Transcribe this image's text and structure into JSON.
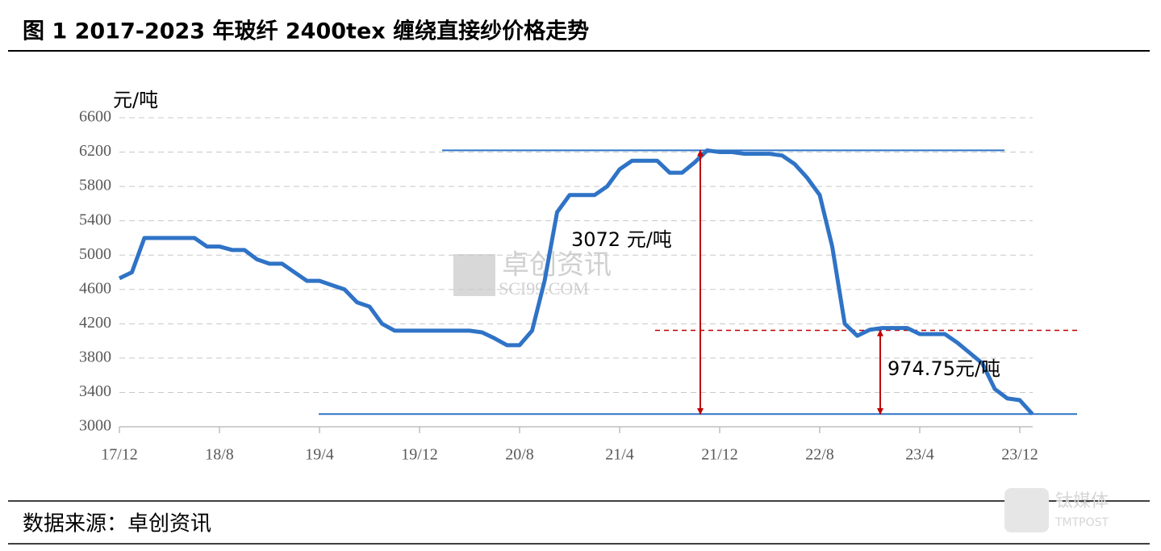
{
  "title": "图 1 2017-2023 年玻纤 2400tex 缠绕直接纱价格走势",
  "source": "数据来源：卓创资讯",
  "watermarks": [
    "卓创资讯",
    "SCI99.COM",
    "钛媒体",
    "TMTPOST"
  ],
  "chart_data": {
    "type": "line",
    "y_label": "元/吨",
    "categories": [
      "17/12",
      null,
      null,
      null,
      null,
      null,
      null,
      null,
      "18/8",
      null,
      null,
      null,
      null,
      null,
      null,
      null,
      "19/4",
      null,
      null,
      null,
      null,
      null,
      null,
      null,
      "19/12",
      null,
      null,
      null,
      null,
      null,
      null,
      null,
      "20/8",
      null,
      null,
      null,
      null,
      null,
      null,
      null,
      "21/4",
      null,
      null,
      null,
      null,
      null,
      null,
      null,
      "21/12",
      null,
      null,
      null,
      null,
      null,
      null,
      null,
      "22/8",
      null,
      null,
      null,
      null,
      null,
      null,
      null,
      "23/4",
      null,
      null,
      null,
      null,
      null,
      null,
      null,
      "23/12",
      null
    ],
    "series": [
      {
        "color": "#2f73c6",
        "values": [
          4730,
          4800,
          5200,
          5200,
          5200,
          5200,
          5200,
          5100,
          5100,
          5060,
          5060,
          4950,
          4900,
          4900,
          4800,
          4700,
          4700,
          4650,
          4600,
          4450,
          4400,
          4200,
          4120,
          4120,
          4120,
          4120,
          4120,
          4120,
          4120,
          4100,
          4030,
          3950,
          3950,
          4120,
          4700,
          5500,
          5700,
          5700,
          5700,
          5800,
          6000,
          6100,
          6100,
          6100,
          5960,
          5960,
          6080,
          6220,
          6200,
          6200,
          6180,
          6180,
          6180,
          6160,
          6060,
          5900,
          5700,
          5100,
          4200,
          4060,
          4130,
          4150,
          4150,
          4150,
          4080,
          4080,
          4080,
          3980,
          3860,
          3740,
          3440,
          3330,
          3310,
          3148
        ]
      }
    ],
    "ylim": [
      3000,
      6600
    ],
    "yticks": [
      3000,
      3400,
      3800,
      4200,
      4600,
      5000,
      5400,
      5800,
      6200,
      6600
    ],
    "grid": true,
    "reference_lines": [
      {
        "value": 6220,
        "color": "#2f73c6"
      },
      {
        "value": 3148,
        "color": "#2f73c6"
      },
      {
        "value": 4122.75,
        "color": "#c00000",
        "dashed": true
      }
    ],
    "annotations": [
      {
        "text": "3072 元/吨",
        "from": 3148,
        "to": 6220
      },
      {
        "text": "974.75元/吨",
        "from": 3148,
        "to": 4122.75
      }
    ]
  }
}
